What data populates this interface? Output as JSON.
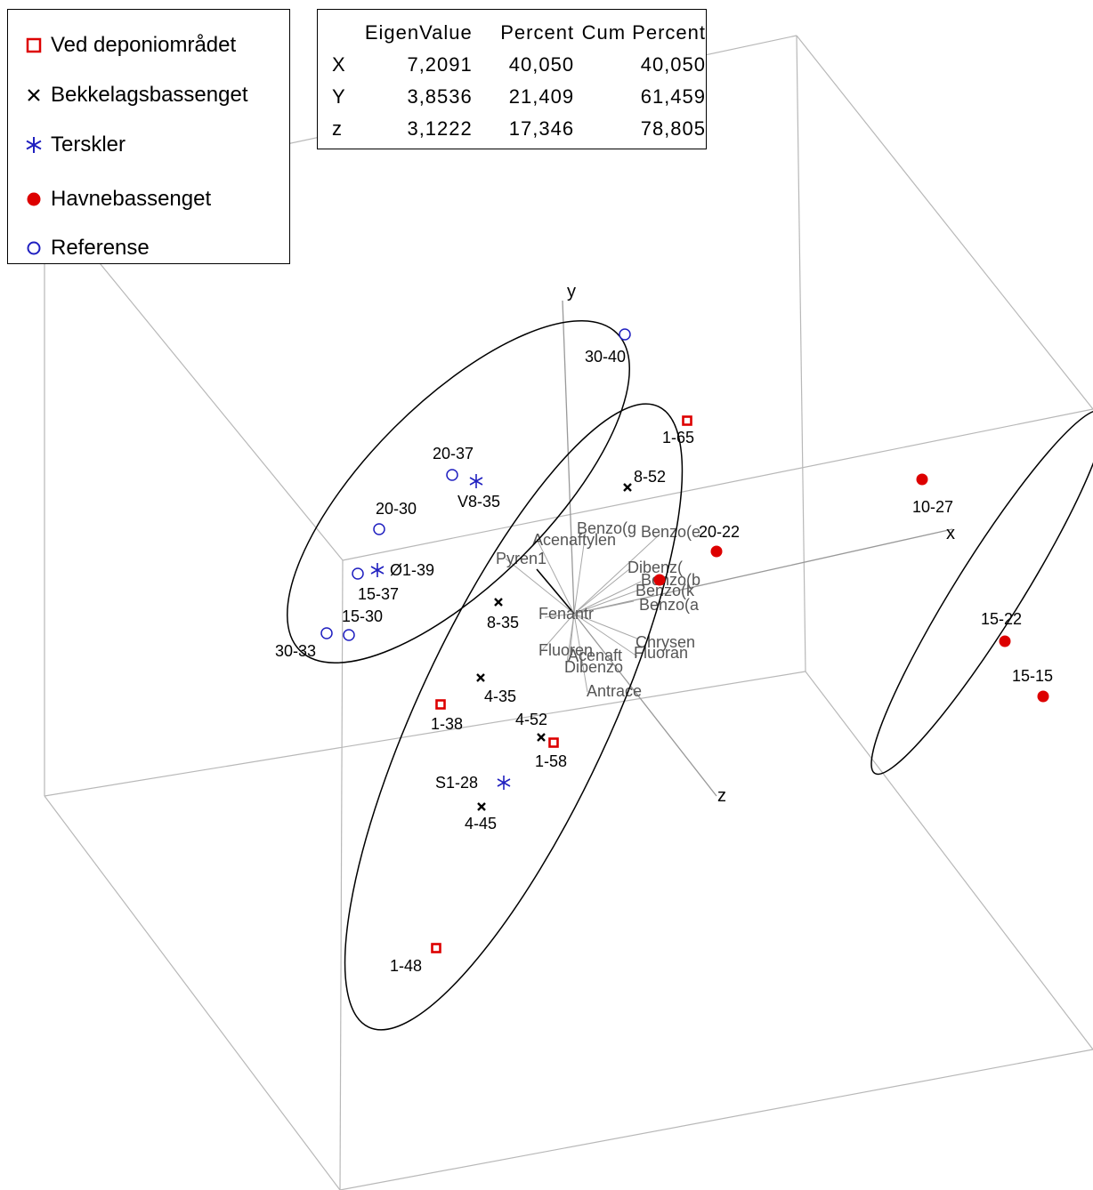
{
  "chart_data": {
    "type": "scatter",
    "subtype": "3d-pca-biplot",
    "axes": {
      "x": "x",
      "y": "y",
      "z": "z"
    },
    "legend": [
      {
        "name": "Ved deponiområdet",
        "marker": "open-square",
        "color": "#dd0000"
      },
      {
        "name": "Bekkelagsbassenget",
        "marker": "x",
        "color": "#000000"
      },
      {
        "name": "Terskler",
        "marker": "asterisk",
        "color": "#2020c0"
      },
      {
        "name": "Havnebassenget",
        "marker": "filled-circle",
        "color": "#dd0000"
      },
      {
        "name": "Referense",
        "marker": "open-circle",
        "color": "#2020c0"
      }
    ],
    "eigen_table": {
      "headers": [
        "",
        "EigenValue",
        "Percent",
        "Cum Percent"
      ],
      "rows": [
        [
          "X",
          "7,2091",
          "40,050",
          "40,050"
        ],
        [
          "Y",
          "3,8536",
          "21,409",
          "61,459"
        ],
        [
          "z",
          "3,1222",
          "17,346",
          "78,805"
        ]
      ]
    },
    "point_labels": {
      "Ved deponiområdet": [
        "1-65",
        "1-38",
        "1-58",
        "1-48"
      ],
      "Bekkelagsbassenget": [
        "8-52",
        "8-35",
        "4-35",
        "4-52",
        "4-45"
      ],
      "Terskler": [
        "V8-35",
        "Ø1-39",
        "S1-28"
      ],
      "Havnebassenget": [
        "20-22",
        "10-27",
        "15-22",
        "15-15"
      ],
      "Referense": [
        "30-40",
        "20-37",
        "20-30",
        "15-37",
        "15-30",
        "30-33"
      ]
    },
    "loading_labels": [
      "Acenaftylen",
      "Benzo(g",
      "Benzo(e",
      "Pyren1",
      "Dibenz(",
      "Benzo(b",
      "Benzo(k",
      "Benzo(a",
      "Fenantr",
      "Chrysen",
      "Fluoren",
      "Acenaft",
      "Fluoran",
      "Dibenzo",
      "Antrace"
    ],
    "grouping_ellipses": 3
  },
  "style": {
    "ved_color": "#dd0000",
    "bekk_color": "#000000",
    "terskler_color": "#2020c0",
    "havne_color": "#dd0000",
    "referense_color": "#2020c0",
    "frame_color": "#b8b8b8",
    "loading_color": "#a8a8a8"
  }
}
